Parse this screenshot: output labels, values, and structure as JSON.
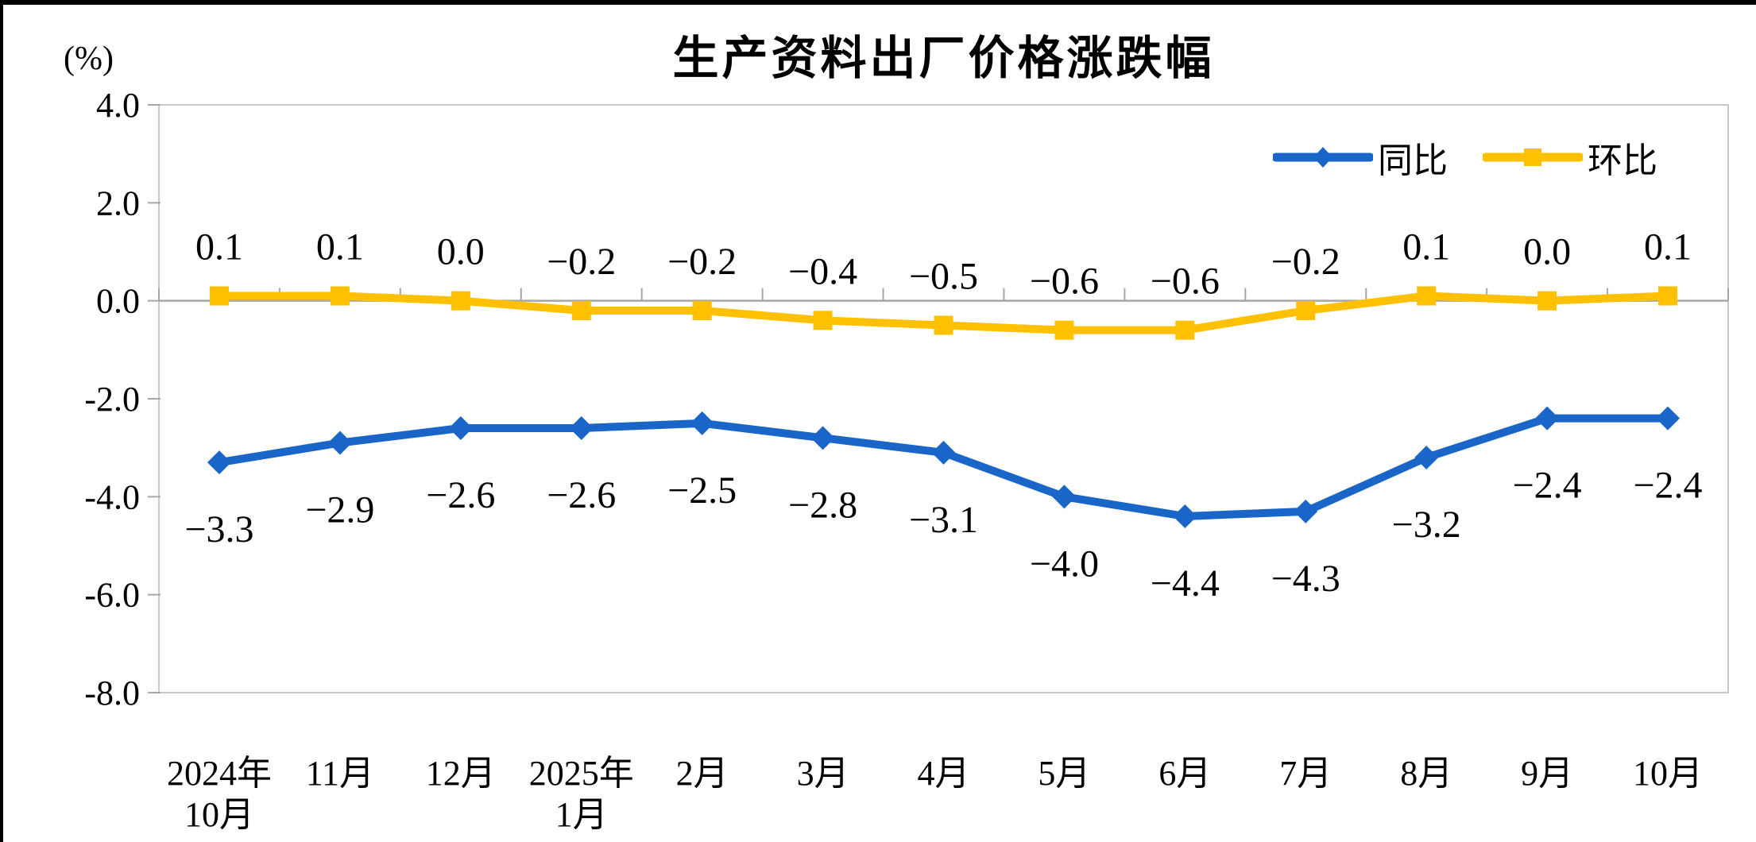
{
  "colors": {
    "background": "#FFFFFF",
    "screen_border": "#000000",
    "frame": "#C9C9C9",
    "axis": "#A6A6A6",
    "text": "#000000"
  },
  "chart_data": {
    "type": "line",
    "title": "生产资料出厂价格涨跌幅",
    "unit": "(%)",
    "categories": [
      "2024年\n10月",
      "11月",
      "12月",
      "2025年\n1月",
      "2月",
      "3月",
      "4月",
      "5月",
      "6月",
      "7月",
      "8月",
      "9月",
      "10月"
    ],
    "series": [
      {
        "name": "同比",
        "color": "#1A66C8",
        "marker": "diamond",
        "label_position": "below",
        "values": [
          -3.3,
          -2.9,
          -2.6,
          -2.6,
          -2.5,
          -2.8,
          -3.1,
          -4.0,
          -4.4,
          -4.3,
          -3.2,
          -2.4,
          -2.4
        ],
        "labels": [
          "−3.3",
          "−2.9",
          "−2.6",
          "−2.6",
          "−2.5",
          "−2.8",
          "−3.1",
          "−4.0",
          "−4.4",
          "−4.3",
          "−3.2",
          "−2.4",
          "−2.4"
        ]
      },
      {
        "name": "环比",
        "color": "#FFC000",
        "marker": "square",
        "label_position": "above",
        "values": [
          0.1,
          0.1,
          0.0,
          -0.2,
          -0.2,
          -0.4,
          -0.5,
          -0.6,
          -0.6,
          -0.2,
          0.1,
          0.0,
          0.1
        ],
        "labels": [
          "0.1",
          "0.1",
          "0.0",
          "−0.2",
          "−0.2",
          "−0.4",
          "−0.5",
          "−0.6",
          "−0.6",
          "−0.2",
          "0.1",
          "0.0",
          "0.1"
        ]
      }
    ],
    "ylim": [
      -8.0,
      4.0
    ],
    "yticks": [
      4.0,
      2.0,
      0.0,
      -2.0,
      -4.0,
      -6.0,
      -8.0
    ],
    "ytick_labels": [
      "4.0",
      "2.0",
      "0.0",
      "-2.0",
      "-4.0",
      "-6.0",
      "-8.0"
    ],
    "legend_position": "top-right",
    "grid": false
  }
}
